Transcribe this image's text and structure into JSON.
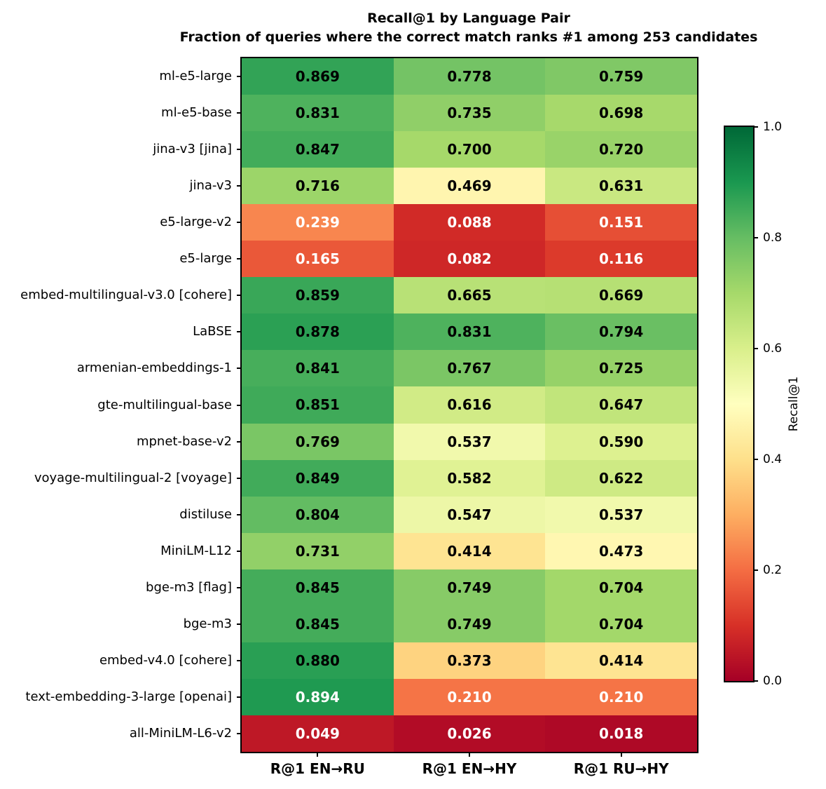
{
  "chart_data": {
    "type": "heatmap",
    "title": "Recall@1 by Language Pair",
    "subtitle": "Fraction of queries where the correct match ranks #1 among 253 candidates",
    "x_categories": [
      "R@1 EN→RU",
      "R@1 EN→HY",
      "R@1 RU→HY"
    ],
    "y_categories": [
      "ml-e5-large",
      "ml-e5-base",
      "jina-v3 [jina]",
      "jina-v3",
      "e5-large-v2",
      "e5-large",
      "embed-multilingual-v3.0 [cohere]",
      "LaBSE",
      "armenian-embeddings-1",
      "gte-multilingual-base",
      "mpnet-base-v2",
      "voyage-multilingual-2 [voyage]",
      "distiluse",
      "MiniLM-L12",
      "bge-m3 [flag]",
      "bge-m3",
      "embed-v4.0 [cohere]",
      "text-embedding-3-large [openai]",
      "all-MiniLM-L6-v2"
    ],
    "values": [
      [
        0.869,
        0.778,
        0.759
      ],
      [
        0.831,
        0.735,
        0.698
      ],
      [
        0.847,
        0.7,
        0.72
      ],
      [
        0.716,
        0.469,
        0.631
      ],
      [
        0.239,
        0.088,
        0.151
      ],
      [
        0.165,
        0.082,
        0.116
      ],
      [
        0.859,
        0.665,
        0.669
      ],
      [
        0.878,
        0.831,
        0.794
      ],
      [
        0.841,
        0.767,
        0.725
      ],
      [
        0.851,
        0.616,
        0.647
      ],
      [
        0.769,
        0.537,
        0.59
      ],
      [
        0.849,
        0.582,
        0.622
      ],
      [
        0.804,
        0.547,
        0.537
      ],
      [
        0.731,
        0.414,
        0.473
      ],
      [
        0.845,
        0.749,
        0.704
      ],
      [
        0.845,
        0.749,
        0.704
      ],
      [
        0.88,
        0.373,
        0.414
      ],
      [
        0.894,
        0.21,
        0.21
      ],
      [
        0.049,
        0.026,
        0.018
      ]
    ],
    "value_decimals": 3,
    "grid": false,
    "colormap": {
      "name": "RdYlGn",
      "stops": [
        "#a50026",
        "#d73027",
        "#f46d43",
        "#fdae61",
        "#fee08b",
        "#ffffbf",
        "#d9ef8b",
        "#a6d96a",
        "#66bd63",
        "#1a9850",
        "#006837"
      ]
    },
    "annotation_colors": {
      "dark_text": "#000000",
      "light_text": "#ffffff",
      "light_text_below": 0.25,
      "light_text_above": 0.89
    },
    "colorbar": {
      "label": "Recall@1",
      "range": [
        0.0,
        1.0
      ],
      "ticks": [
        {
          "label": "0.0",
          "value": 0.0
        },
        {
          "label": "0.2",
          "value": 0.2
        },
        {
          "label": "0.4",
          "value": 0.4
        },
        {
          "label": "0.6",
          "value": 0.6
        },
        {
          "label": "0.8",
          "value": 0.8
        },
        {
          "label": "1.0",
          "value": 1.0
        }
      ],
      "position": "right"
    }
  }
}
